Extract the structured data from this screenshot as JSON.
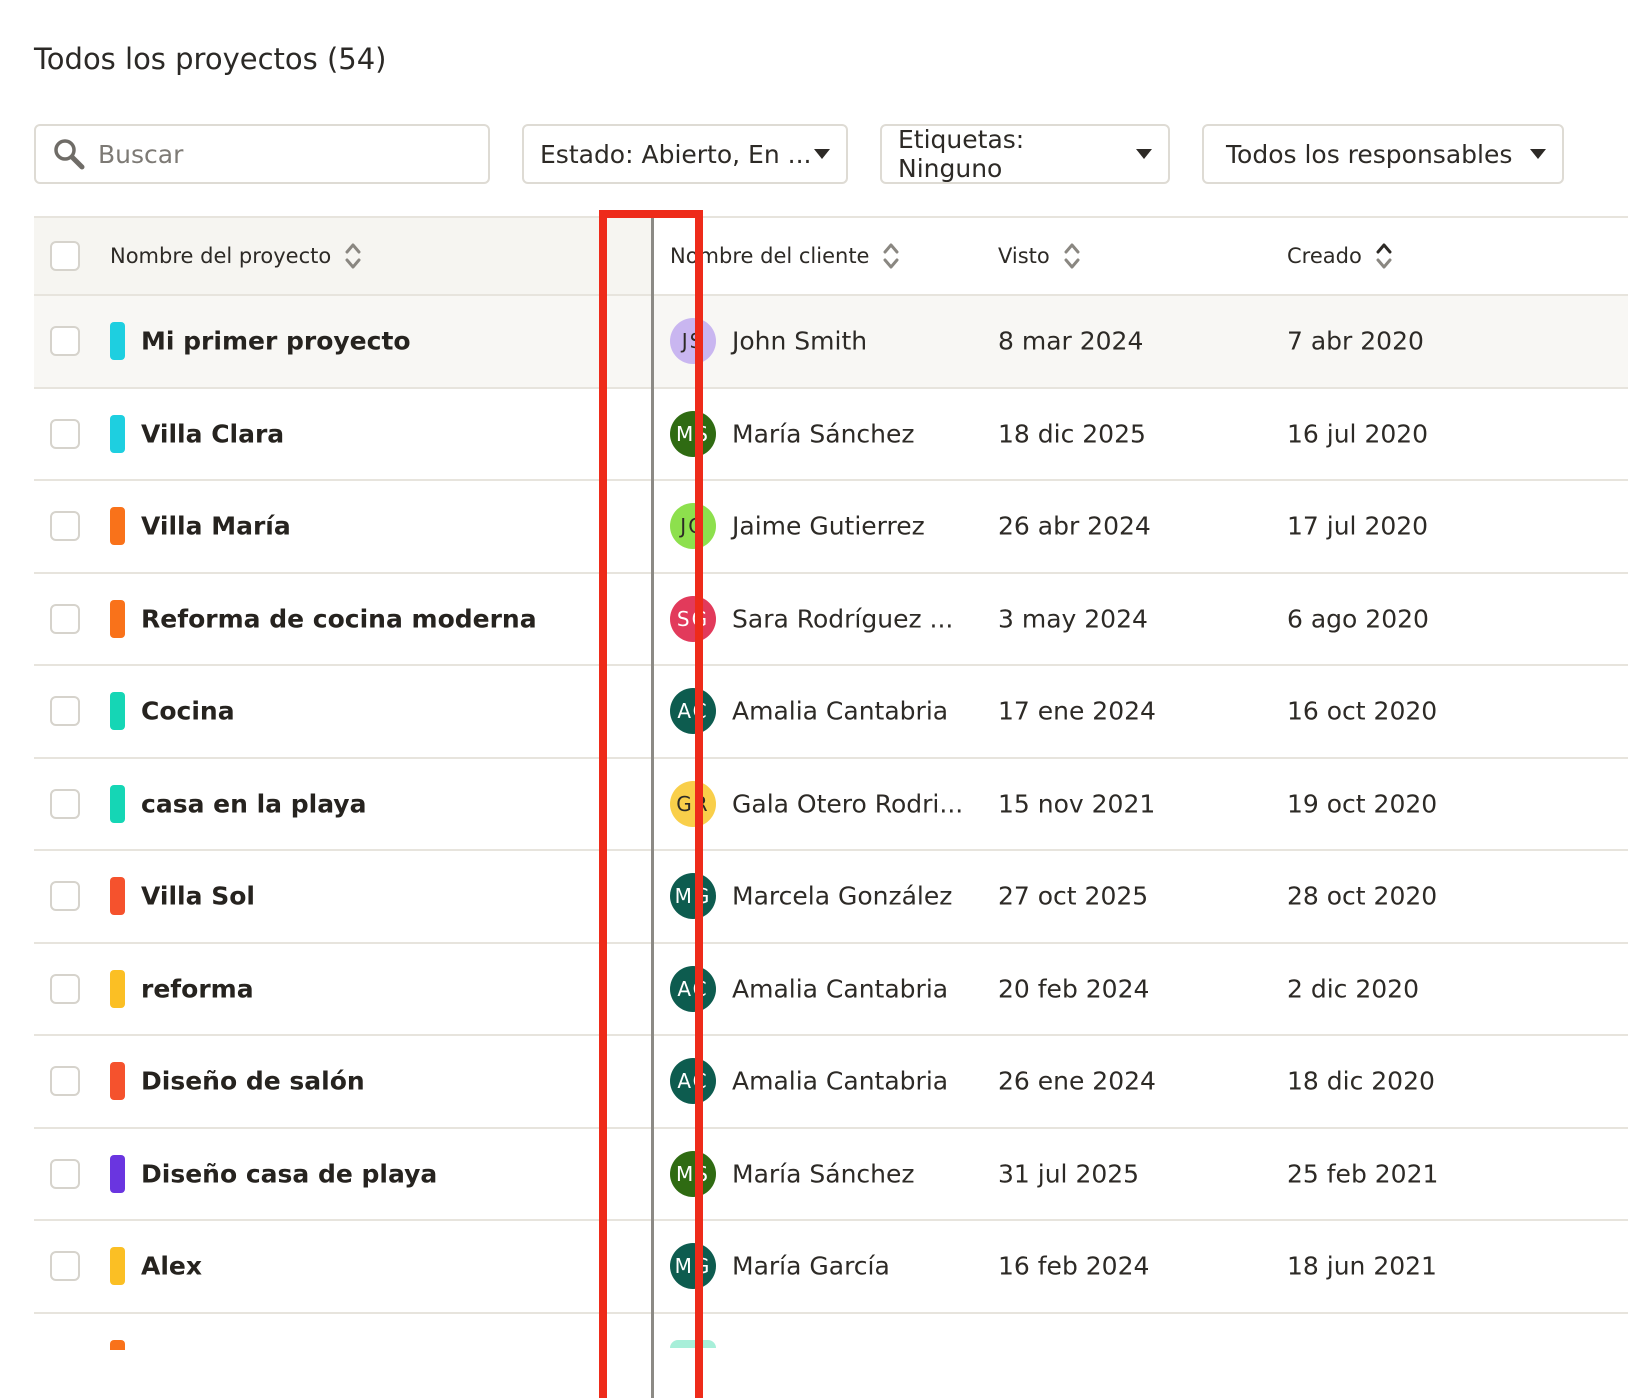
{
  "page": {
    "title": "Todos los proyectos (54)"
  },
  "search": {
    "placeholder": "Buscar"
  },
  "filters": {
    "estado": "Estado: Abierto, En ...",
    "etiquetas": "Etiquetas: Ninguno",
    "responsables": "Todos los responsables"
  },
  "table": {
    "columns": {
      "project": "Nombre del proyecto",
      "client": "Nombre del cliente",
      "seen": "Visto",
      "created": "Creado"
    },
    "rows": [
      {
        "project": "Mi primer proyecto",
        "tag_color": "#1ecfe0",
        "initials": "JS",
        "avatar_color": "#c9b6f0",
        "avatar_text_color": "#2d2a26",
        "client": "John Smith",
        "seen": "8 mar 2024",
        "created": "7 abr 2020"
      },
      {
        "project": "Villa Clara",
        "tag_color": "#1ecfe0",
        "initials": "MS",
        "avatar_color": "#2f6b12",
        "avatar_text_color": "#ffffff",
        "client": "María Sánchez",
        "seen": "18 dic 2025",
        "created": "16 jul 2020"
      },
      {
        "project": "Villa María",
        "tag_color": "#f9721a",
        "initials": "JG",
        "avatar_color": "#8de04d",
        "avatar_text_color": "#2d2a26",
        "client": "Jaime Gutierrez",
        "seen": "26 abr 2024",
        "created": "17 jul 2020"
      },
      {
        "project": "Reforma de cocina moderna",
        "tag_color": "#f9721a",
        "initials": "SG",
        "avatar_color": "#e23a5b",
        "avatar_text_color": "#ffffff",
        "client": "Sara Rodríguez ...",
        "seen": "3 may 2024",
        "created": "6 ago 2020"
      },
      {
        "project": "Cocina",
        "tag_color": "#15d6b5",
        "initials": "AC",
        "avatar_color": "#0d5c4f",
        "avatar_text_color": "#ffffff",
        "client": "Amalia Cantabria",
        "seen": "17 ene 2024",
        "created": "16 oct 2020"
      },
      {
        "project": "casa en la playa",
        "tag_color": "#15d6b5",
        "initials": "GR",
        "avatar_color": "#f9cf4a",
        "avatar_text_color": "#2d2a26",
        "client": "Gala Otero Rodri...",
        "seen": "15 nov 2021",
        "created": "19 oct 2020"
      },
      {
        "project": "Villa Sol",
        "tag_color": "#f5522d",
        "initials": "MG",
        "avatar_color": "#0d5c4f",
        "avatar_text_color": "#ffffff",
        "client": "Marcela González",
        "seen": "27 oct 2025",
        "created": "28 oct 2020"
      },
      {
        "project": "reforma",
        "tag_color": "#fbbf24",
        "initials": "AC",
        "avatar_color": "#0d5c4f",
        "avatar_text_color": "#ffffff",
        "client": "Amalia Cantabria",
        "seen": "20 feb 2024",
        "created": "2 dic 2020"
      },
      {
        "project": "Diseño de salón",
        "tag_color": "#f5522d",
        "initials": "AC",
        "avatar_color": "#0d5c4f",
        "avatar_text_color": "#ffffff",
        "client": "Amalia Cantabria",
        "seen": "26 ene 2024",
        "created": "18 dic 2020"
      },
      {
        "project": "Diseño casa de playa",
        "tag_color": "#6a35e0",
        "initials": "MS",
        "avatar_color": "#2f6b12",
        "avatar_text_color": "#ffffff",
        "client": "María Sánchez",
        "seen": "31 jul 2025",
        "created": "25 feb 2021"
      },
      {
        "project": "Alex",
        "tag_color": "#fbbf24",
        "initials": "MG",
        "avatar_color": "#0d5c4f",
        "avatar_text_color": "#ffffff",
        "client": "María García",
        "seen": "16 feb 2024",
        "created": "18 jun 2021"
      }
    ]
  },
  "colors": {
    "highlight": "#ee2b1a",
    "border": "#e7e4dd",
    "header_bg": "#f6f5f1"
  },
  "icons": {
    "search": "magnifier-icon",
    "sort": "sort-icon",
    "caret": "caret-down-icon"
  }
}
